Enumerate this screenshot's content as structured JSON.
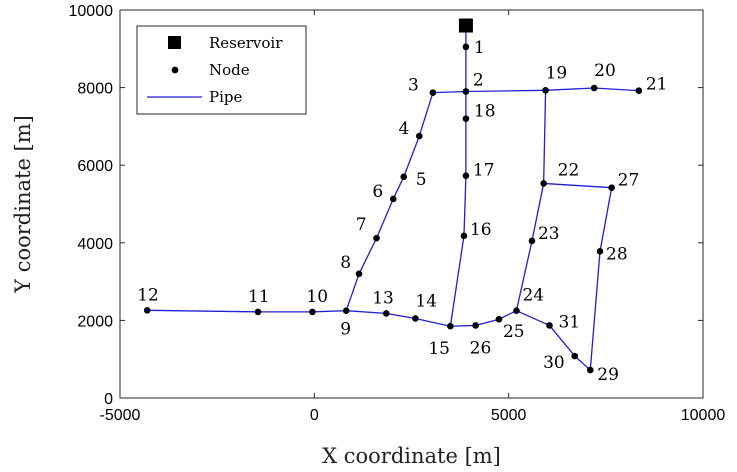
{
  "chart_data": {
    "type": "scatter",
    "xlabel": "X coordinate [m]",
    "ylabel": "Y coordinate [m]",
    "xlim": [
      -5000,
      10000
    ],
    "ylim": [
      0,
      10000
    ],
    "xticks": [
      -5000,
      0,
      5000,
      10000
    ],
    "yticks": [
      0,
      2000,
      4000,
      6000,
      8000,
      10000
    ],
    "grid": false,
    "legend_position": "top-left",
    "colors": {
      "pipe": "#1f1fd6",
      "node": "#000000",
      "reservoir": "#000000",
      "axes": "#262626"
    },
    "legend": [
      {
        "label": "Reservoir",
        "marker": "square"
      },
      {
        "label": "Node",
        "marker": "dot"
      },
      {
        "label": "Pipe",
        "marker": "line"
      }
    ],
    "reservoir": {
      "x": 3900,
      "y": 9600
    },
    "nodes": [
      {
        "id": "1",
        "x": 3900,
        "y": 9050
      },
      {
        "id": "2",
        "x": 3900,
        "y": 7900
      },
      {
        "id": "3",
        "x": 3050,
        "y": 7870
      },
      {
        "id": "4",
        "x": 2700,
        "y": 6750
      },
      {
        "id": "5",
        "x": 2300,
        "y": 5700
      },
      {
        "id": "6",
        "x": 2030,
        "y": 5130
      },
      {
        "id": "7",
        "x": 1600,
        "y": 4120
      },
      {
        "id": "8",
        "x": 1150,
        "y": 3200
      },
      {
        "id": "9",
        "x": 820,
        "y": 2250
      },
      {
        "id": "10",
        "x": -50,
        "y": 2220
      },
      {
        "id": "11",
        "x": -1450,
        "y": 2220
      },
      {
        "id": "12",
        "x": -4300,
        "y": 2260
      },
      {
        "id": "13",
        "x": 1850,
        "y": 2180
      },
      {
        "id": "14",
        "x": 2600,
        "y": 2050
      },
      {
        "id": "15",
        "x": 3500,
        "y": 1850
      },
      {
        "id": "16",
        "x": 3850,
        "y": 4180
      },
      {
        "id": "17",
        "x": 3900,
        "y": 5730
      },
      {
        "id": "18",
        "x": 3900,
        "y": 7200
      },
      {
        "id": "19",
        "x": 5950,
        "y": 7930
      },
      {
        "id": "20",
        "x": 7200,
        "y": 7990
      },
      {
        "id": "21",
        "x": 8350,
        "y": 7920
      },
      {
        "id": "22",
        "x": 5900,
        "y": 5530
      },
      {
        "id": "23",
        "x": 5600,
        "y": 4050
      },
      {
        "id": "24",
        "x": 5200,
        "y": 2250
      },
      {
        "id": "25",
        "x": 4750,
        "y": 2030
      },
      {
        "id": "26",
        "x": 4150,
        "y": 1870
      },
      {
        "id": "27",
        "x": 7650,
        "y": 5420
      },
      {
        "id": "28",
        "x": 7350,
        "y": 3780
      },
      {
        "id": "29",
        "x": 7100,
        "y": 720
      },
      {
        "id": "30",
        "x": 6700,
        "y": 1080
      },
      {
        "id": "31",
        "x": 6050,
        "y": 1870
      }
    ],
    "pipes": [
      [
        "R",
        "1"
      ],
      [
        "1",
        "2"
      ],
      [
        "2",
        "3"
      ],
      [
        "3",
        "4"
      ],
      [
        "4",
        "5"
      ],
      [
        "5",
        "6"
      ],
      [
        "6",
        "7"
      ],
      [
        "7",
        "8"
      ],
      [
        "8",
        "9"
      ],
      [
        "9",
        "10"
      ],
      [
        "10",
        "11"
      ],
      [
        "11",
        "12"
      ],
      [
        "9",
        "13"
      ],
      [
        "13",
        "14"
      ],
      [
        "14",
        "15"
      ],
      [
        "15",
        "26"
      ],
      [
        "26",
        "25"
      ],
      [
        "25",
        "24"
      ],
      [
        "15",
        "16"
      ],
      [
        "16",
        "17"
      ],
      [
        "17",
        "18"
      ],
      [
        "18",
        "2"
      ],
      [
        "2",
        "19"
      ],
      [
        "19",
        "20"
      ],
      [
        "20",
        "21"
      ],
      [
        "19",
        "22"
      ],
      [
        "22",
        "27"
      ],
      [
        "27",
        "28"
      ],
      [
        "28",
        "29"
      ],
      [
        "22",
        "23"
      ],
      [
        "23",
        "24"
      ],
      [
        "24",
        "31"
      ],
      [
        "31",
        "30"
      ],
      [
        "30",
        "29"
      ]
    ]
  }
}
